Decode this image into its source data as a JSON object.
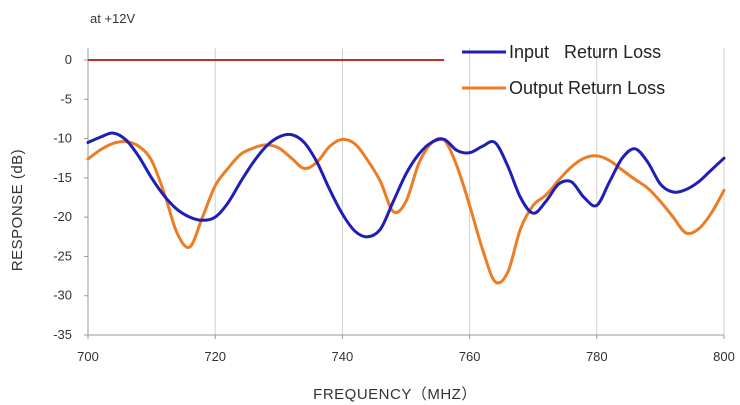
{
  "chart_data": {
    "type": "line",
    "annotation": "at +12V",
    "xlabel": "FREQUENCY（MHZ）",
    "ylabel": "RESPONSE (dB)",
    "xlim": [
      700,
      800
    ],
    "ylim": [
      -35,
      0
    ],
    "x_ticks": [
      700,
      720,
      740,
      760,
      780,
      800
    ],
    "y_ticks": [
      0,
      -5,
      -10,
      -15,
      -20,
      -25,
      -30,
      -35
    ],
    "grid": "vertical",
    "legend_position": "top-right",
    "reference_line": {
      "y": 0,
      "x_range": [
        700,
        756
      ],
      "color": "#c0302b"
    },
    "series": [
      {
        "name": "Input   Return Loss",
        "color": "#1f1fb5",
        "x": [
          700,
          702,
          704,
          706,
          708,
          710,
          712,
          714,
          716,
          718,
          720,
          722,
          724,
          726,
          728,
          730,
          732,
          734,
          736,
          738,
          740,
          742,
          744,
          746,
          748,
          750,
          752,
          754,
          756,
          758,
          760,
          762,
          764,
          766,
          768,
          770,
          772,
          774,
          776,
          778,
          780,
          782,
          784,
          786,
          788,
          790,
          792,
          794,
          796,
          798,
          800
        ],
        "y": [
          -10.5,
          -9.8,
          -9.3,
          -10.2,
          -12.3,
          -15.0,
          -17.3,
          -19.0,
          -20.0,
          -20.4,
          -20.0,
          -18.2,
          -15.5,
          -13.0,
          -11.0,
          -9.8,
          -9.5,
          -10.5,
          -13.0,
          -16.5,
          -19.6,
          -21.8,
          -22.5,
          -21.5,
          -18.0,
          -14.5,
          -12.0,
          -10.5,
          -10.1,
          -11.5,
          -11.8,
          -11.0,
          -10.5,
          -13.5,
          -17.5,
          -19.5,
          -18.0,
          -15.8,
          -15.5,
          -17.5,
          -18.5,
          -15.5,
          -12.5,
          -11.3,
          -13.0,
          -15.8,
          -16.8,
          -16.5,
          -15.5,
          -14.0,
          -12.5
        ]
      },
      {
        "name": "Output Return Loss",
        "color": "#ec7d25",
        "x": [
          700,
          702,
          704,
          706,
          708,
          710,
          712,
          714,
          716,
          718,
          720,
          722,
          724,
          726,
          728,
          730,
          732,
          734,
          736,
          738,
          740,
          742,
          744,
          746,
          748,
          750,
          752,
          754,
          756,
          758,
          760,
          762,
          764,
          766,
          768,
          770,
          772,
          774,
          776,
          778,
          780,
          782,
          784,
          786,
          788,
          790,
          792,
          794,
          796,
          798,
          800
        ],
        "y": [
          -12.6,
          -11.4,
          -10.6,
          -10.4,
          -11.0,
          -12.8,
          -17.0,
          -22.0,
          -23.8,
          -20.0,
          -16.0,
          -13.8,
          -12.0,
          -11.2,
          -10.8,
          -11.2,
          -12.5,
          -13.8,
          -13.0,
          -11.0,
          -10.1,
          -10.7,
          -12.8,
          -15.5,
          -19.3,
          -18.0,
          -13.2,
          -10.6,
          -10.2,
          -13.5,
          -18.5,
          -24.0,
          -28.2,
          -27.0,
          -21.5,
          -18.5,
          -17.2,
          -15.3,
          -13.6,
          -12.5,
          -12.2,
          -12.8,
          -14.0,
          -15.2,
          -16.3,
          -18.0,
          -20.0,
          -22.0,
          -21.5,
          -19.5,
          -16.6
        ]
      }
    ]
  }
}
